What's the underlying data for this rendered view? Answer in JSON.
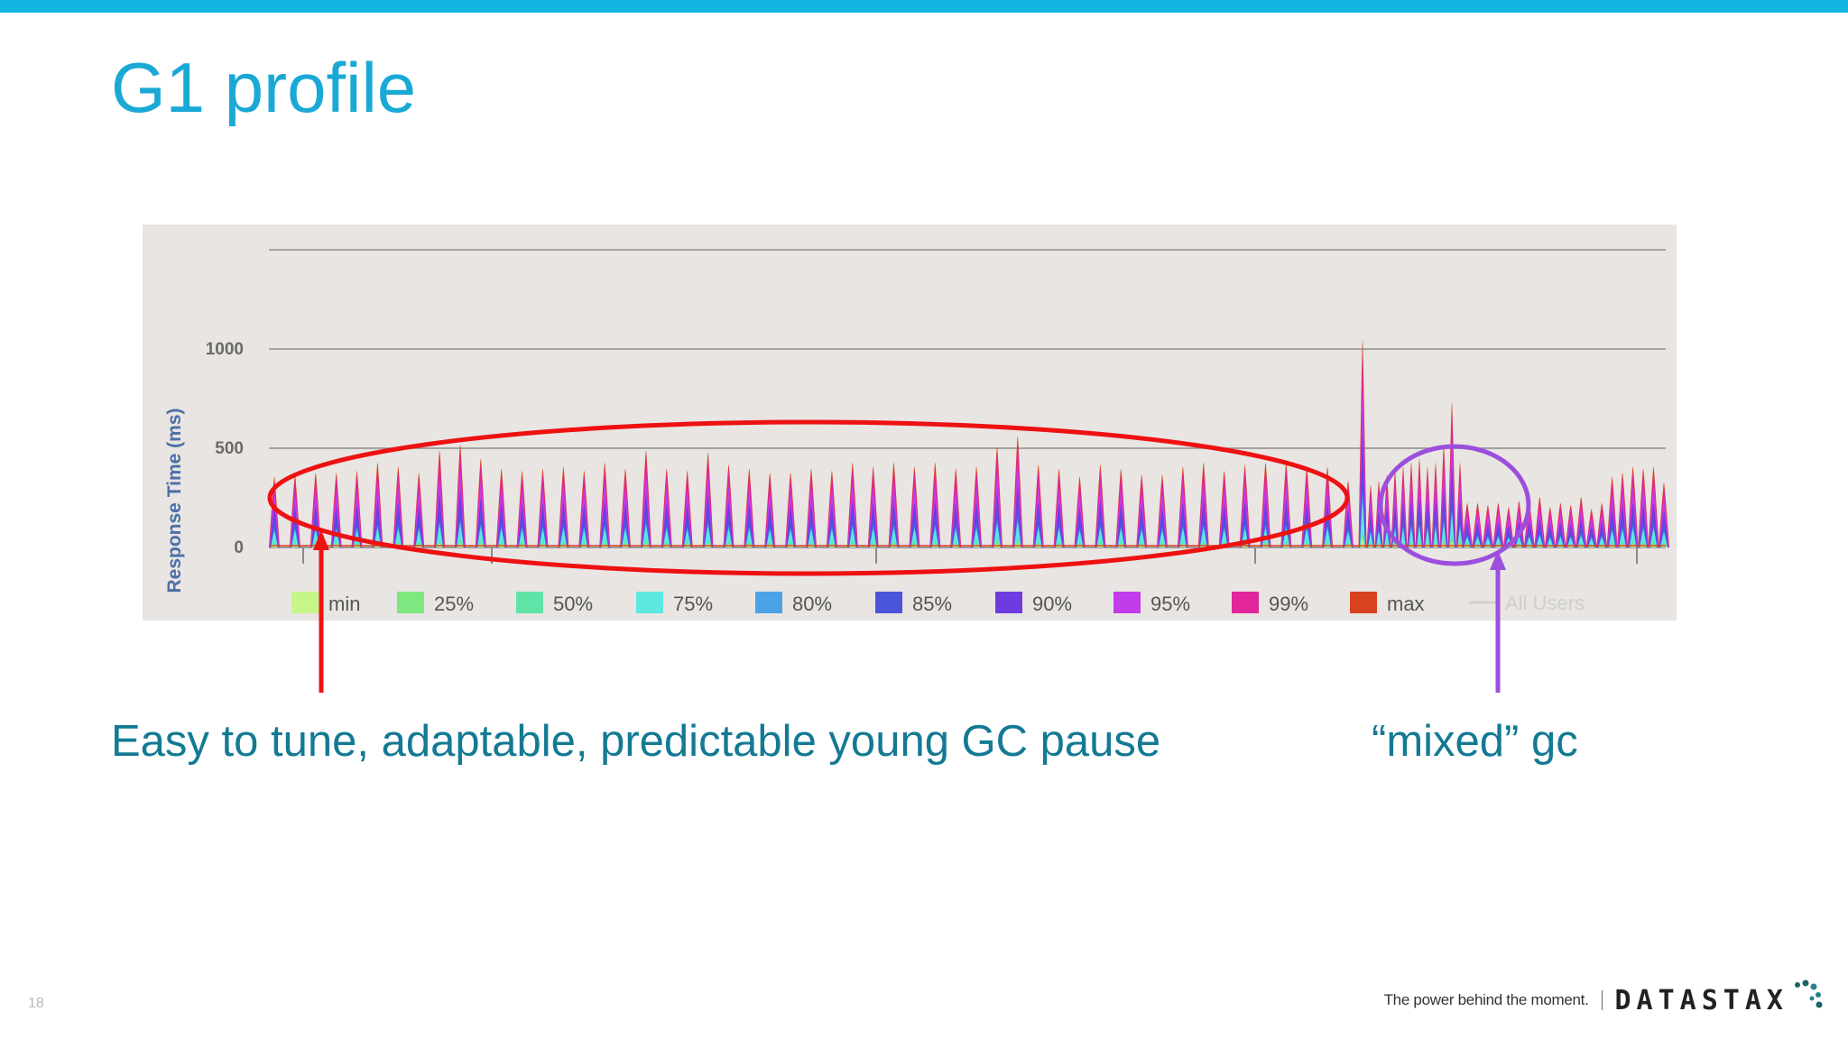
{
  "slide": {
    "title": "G1 profile",
    "number": "18",
    "caption_left": "Easy to tune, adaptable, predictable young GC pause",
    "caption_right": "“mixed” gc",
    "colors": {
      "accent": "#12b5e0",
      "title": "#1aa9d6",
      "caption": "#137a94",
      "young_gc_annotation": "#ee1111",
      "mixed_gc_annotation": "#9b4fdc"
    }
  },
  "footer": {
    "tagline": "The power behind the moment.",
    "brand": "DATASTAX"
  },
  "chart_data": {
    "type": "area",
    "ylabel": "Response Time (ms)",
    "y_ticks": [
      0,
      500,
      1000
    ],
    "ylim": [
      0,
      1500
    ],
    "grid": true,
    "legend_position": "bottom",
    "series": [
      {
        "name": "min",
        "color": "#c6f58a"
      },
      {
        "name": "25%",
        "color": "#7ce87f"
      },
      {
        "name": "50%",
        "color": "#5fe3a6"
      },
      {
        "name": "75%",
        "color": "#5ce8e0"
      },
      {
        "name": "80%",
        "color": "#4ba3e6"
      },
      {
        "name": "85%",
        "color": "#4a55dc"
      },
      {
        "name": "90%",
        "color": "#6e3be0"
      },
      {
        "name": "95%",
        "color": "#c13cea"
      },
      {
        "name": "99%",
        "color": "#e0269a"
      },
      {
        "name": "max",
        "color": "#d9421f"
      },
      {
        "name": "All Users",
        "color": "#d0d0d0",
        "style": "line"
      }
    ],
    "peaks_max_ms": [
      350,
      360,
      370,
      370,
      380,
      420,
      400,
      370,
      480,
      510,
      440,
      390,
      380,
      390,
      400,
      380,
      420,
      390,
      480,
      390,
      380,
      470,
      410,
      390,
      370,
      370,
      390,
      380,
      420,
      400,
      420,
      400,
      420,
      390,
      400,
      500,
      550,
      410,
      390,
      350,
      410,
      390,
      360,
      360,
      400,
      420,
      380,
      410,
      420,
      420,
      400,
      400,
      330,
      1030,
      310,
      330,
      360,
      380,
      400,
      420,
      440,
      400,
      420,
      510,
      720,
      420,
      220,
      220,
      210,
      220,
      200,
      230,
      220,
      250,
      200,
      220,
      210,
      250,
      190,
      220,
      350,
      370,
      400,
      390,
      400,
      320
    ],
    "annotations": [
      {
        "label": "young GC",
        "target": "caption_left"
      },
      {
        "label": "mixed gc",
        "target": "caption_right"
      }
    ]
  }
}
